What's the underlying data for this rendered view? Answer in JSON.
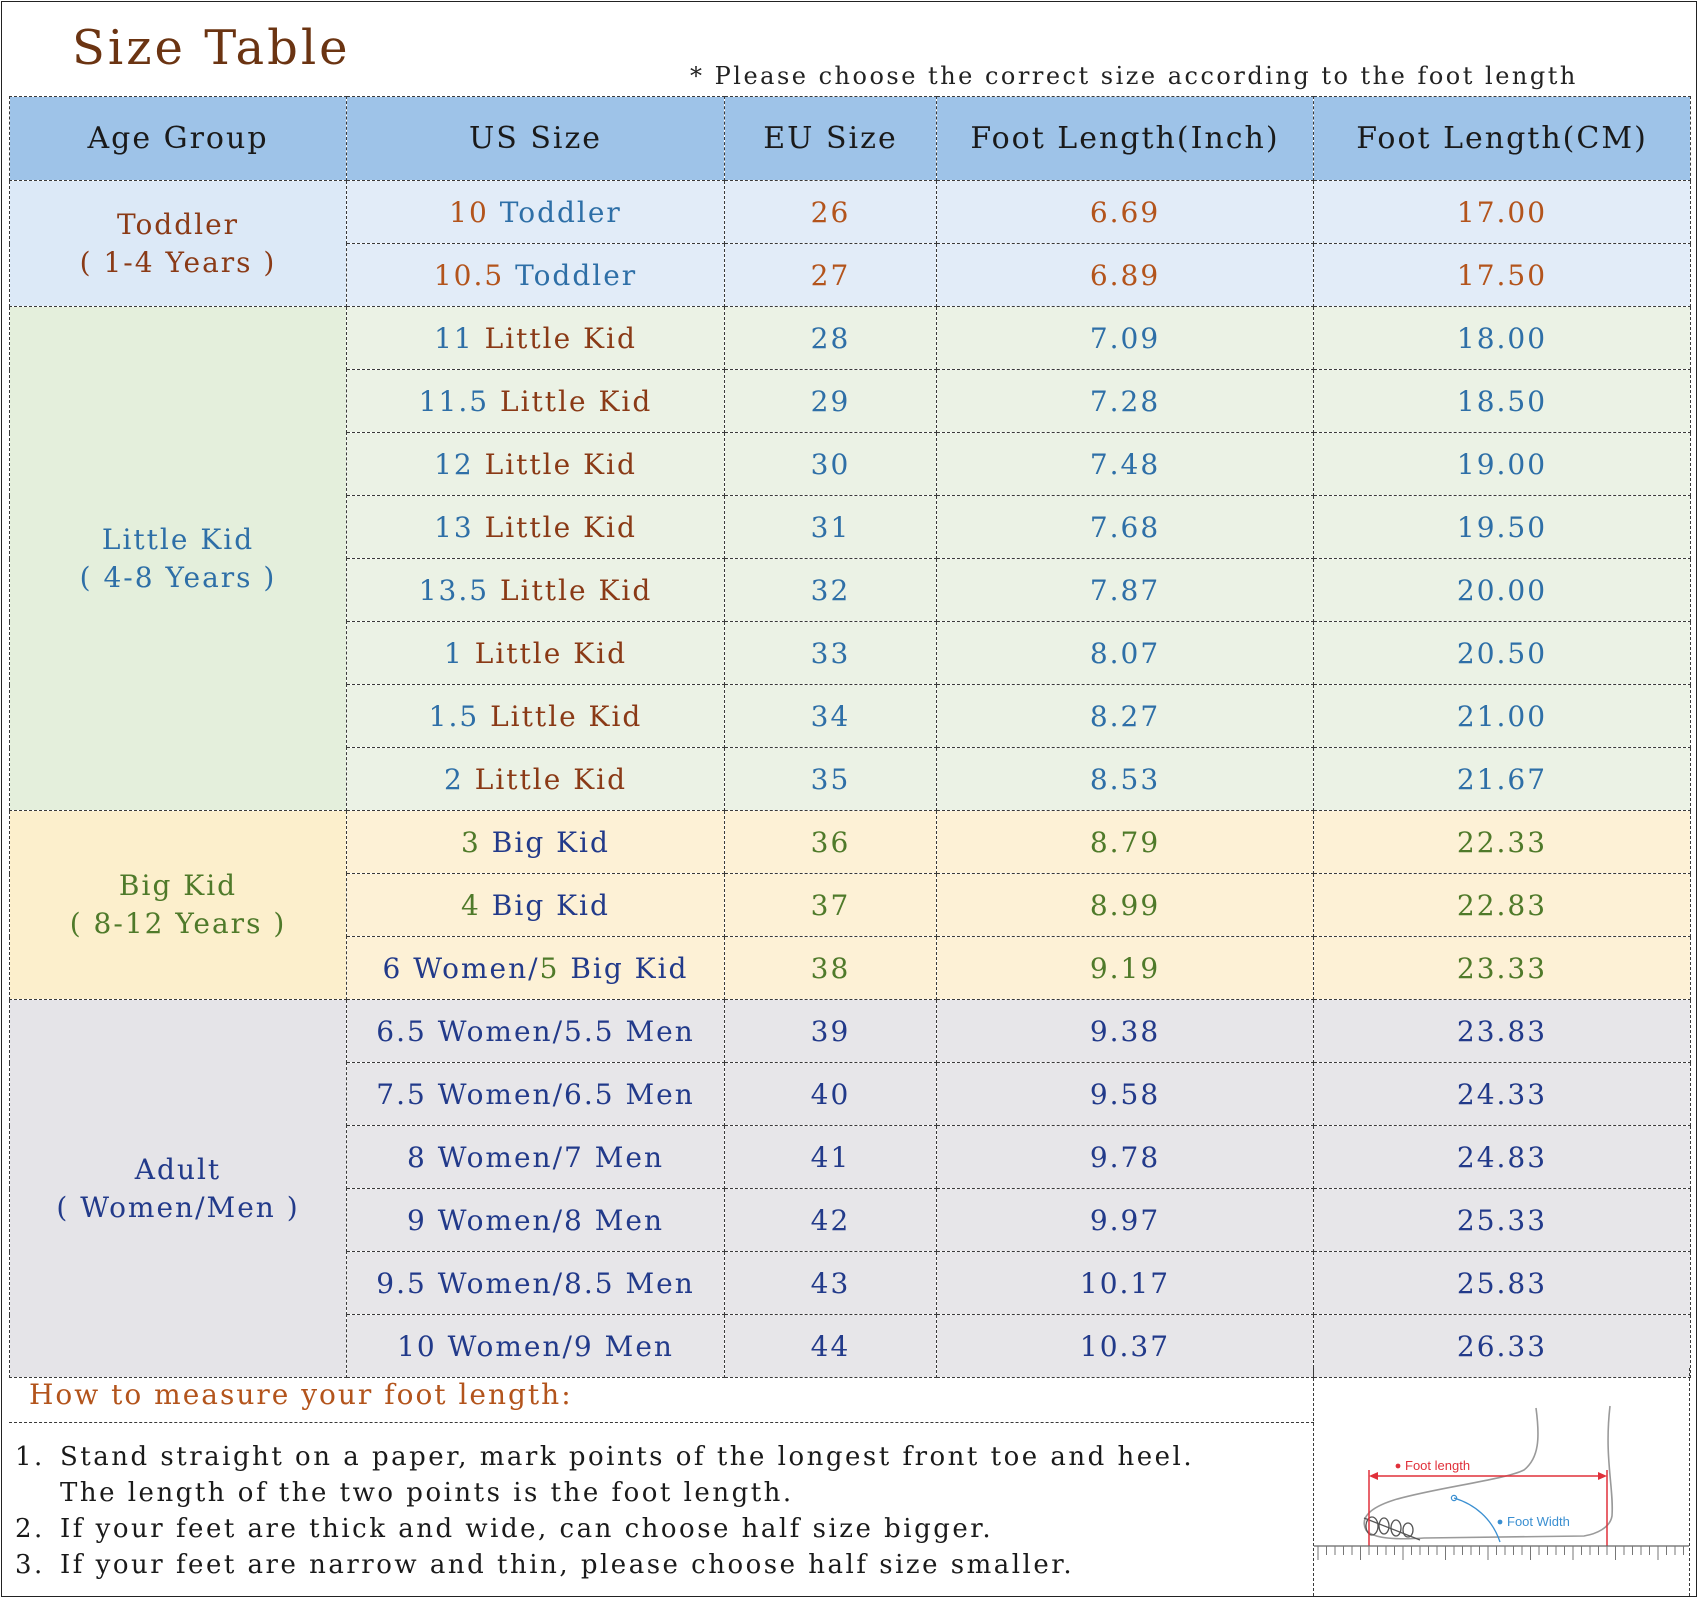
{
  "title": "Size Table",
  "note": "* Please choose the correct size according to the foot length",
  "columns": [
    "Age Group",
    "US Size",
    "EU Size",
    "Foot Length(Inch)",
    "Foot Length(CM)"
  ],
  "groups": {
    "toddler": {
      "name": "Toddler",
      "sub": "( 1-4 Years )"
    },
    "little": {
      "name": "Little Kid",
      "sub": "( 4-8 Years )"
    },
    "big": {
      "name": "Big Kid",
      "sub": "( 8-12 Years )"
    },
    "adult": {
      "name": "Adult",
      "sub": "( Women/Men )"
    }
  },
  "rows": [
    {
      "us_num": "10",
      "us_label": "Toddler",
      "eu": "26",
      "inch": "6.69",
      "cm": "17.00"
    },
    {
      "us_num": "10.5",
      "us_label": "Toddler",
      "eu": "27",
      "inch": "6.89",
      "cm": "17.50"
    },
    {
      "us_num": "11",
      "us_label": "Little Kid",
      "eu": "28",
      "inch": "7.09",
      "cm": "18.00"
    },
    {
      "us_num": "11.5",
      "us_label": "Little Kid",
      "eu": "29",
      "inch": "7.28",
      "cm": "18.50"
    },
    {
      "us_num": "12",
      "us_label": "Little Kid",
      "eu": "30",
      "inch": "7.48",
      "cm": "19.00"
    },
    {
      "us_num": "13",
      "us_label": "Little Kid",
      "eu": "31",
      "inch": "7.68",
      "cm": "19.50"
    },
    {
      "us_num": "13.5",
      "us_label": "Little Kid",
      "eu": "32",
      "inch": "7.87",
      "cm": "20.00"
    },
    {
      "us_num": "1",
      "us_label": "Little Kid",
      "eu": "33",
      "inch": "8.07",
      "cm": "20.50"
    },
    {
      "us_num": "1.5",
      "us_label": "Little Kid",
      "eu": "34",
      "inch": "8.27",
      "cm": "21.00"
    },
    {
      "us_num": "2",
      "us_label": "Little Kid",
      "eu": "35",
      "inch": "8.53",
      "cm": "21.67"
    },
    {
      "us_num": "3",
      "us_label": "Big Kid",
      "eu": "36",
      "inch": "8.79",
      "cm": "22.33"
    },
    {
      "us_num": "4",
      "us_label": "Big Kid",
      "eu": "37",
      "inch": "8.99",
      "cm": "22.83"
    },
    {
      "us_prefix": "6 Women/",
      "us_num": "5",
      "us_label": "Big Kid",
      "eu": "38",
      "inch": "9.19",
      "cm": "23.33"
    },
    {
      "us": "6.5 Women/5.5 Men",
      "eu": "39",
      "inch": "9.38",
      "cm": "23.83"
    },
    {
      "us": "7.5 Women/6.5 Men",
      "eu": "40",
      "inch": "9.58",
      "cm": "24.33"
    },
    {
      "us": "8 Women/7 Men",
      "eu": "41",
      "inch": "9.78",
      "cm": "24.83"
    },
    {
      "us": "9 Women/8 Men",
      "eu": "42",
      "inch": "9.97",
      "cm": "25.33"
    },
    {
      "us": "9.5 Women/8.5 Men",
      "eu": "43",
      "inch": "10.17",
      "cm": "25.83"
    },
    {
      "us": "10 Women/9 Men",
      "eu": "44",
      "inch": "10.37",
      "cm": "26.33"
    }
  ],
  "howto": {
    "title": "How to measure your foot length:",
    "steps": [
      {
        "num": "1.",
        "text": "Stand straight on a paper, mark points of the longest front toe and heel."
      },
      {
        "cont": "The length of the two points is the foot length."
      },
      {
        "num": "2.",
        "text": "If your feet are thick and wide, can choose half size bigger."
      },
      {
        "num": "3.",
        "text": "If your feet are narrow and thin, please choose half size smaller."
      }
    ]
  },
  "diagram": {
    "foot_length_label": "Foot length",
    "foot_width_label": "Foot Width",
    "accent_red": "#e0303a",
    "accent_blue": "#3a8fd1"
  },
  "colors": {
    "header_bg": "#9ec3e8",
    "toddler_bg": "#e2ecf8",
    "little_kid_bg": "#ebf2e5",
    "big_kid_bg": "#fdf1d6",
    "adult_bg": "#e7e6e9",
    "title": "#6b3412"
  }
}
